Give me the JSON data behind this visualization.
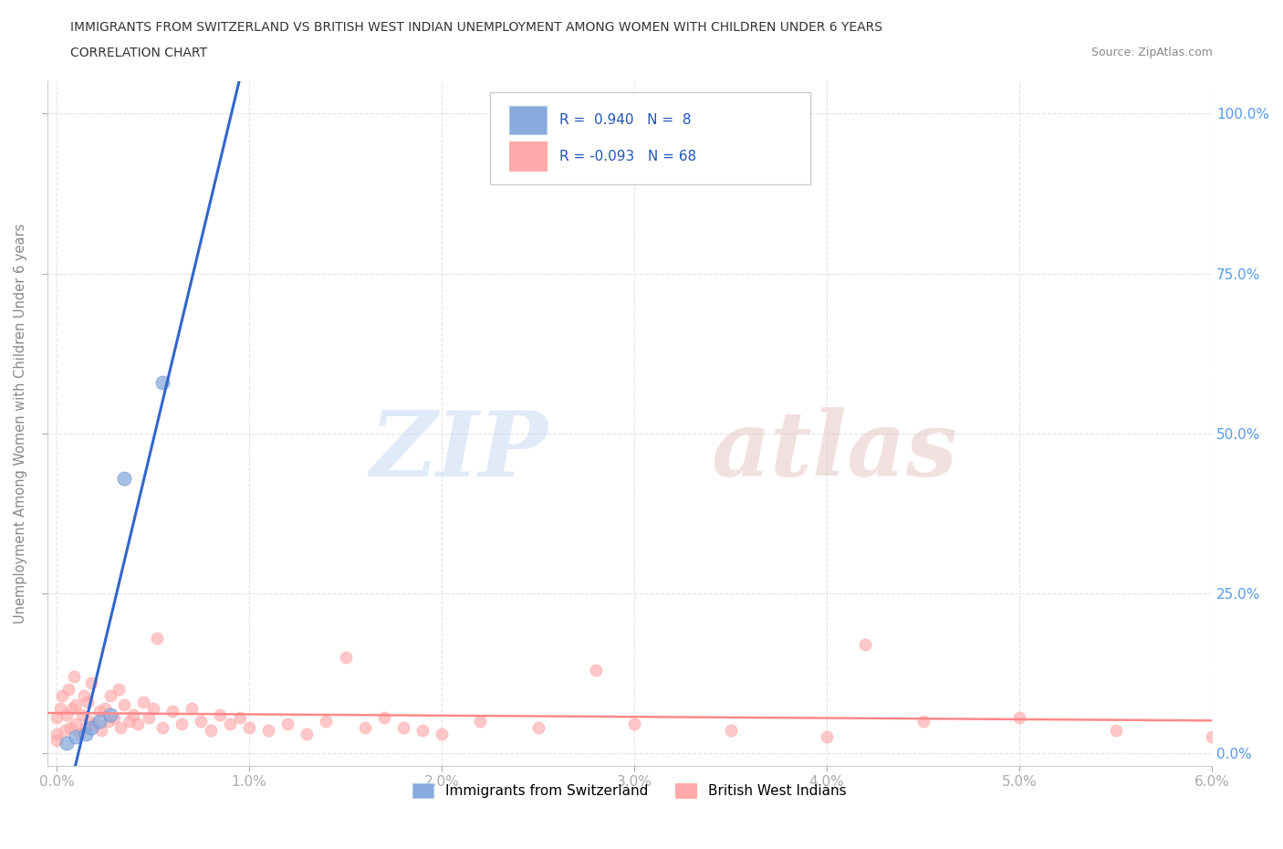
{
  "title_line1": "IMMIGRANTS FROM SWITZERLAND VS BRITISH WEST INDIAN UNEMPLOYMENT AMONG WOMEN WITH CHILDREN UNDER 6 YEARS",
  "title_line2": "CORRELATION CHART",
  "source": "Source: ZipAtlas.com",
  "ylabel": "Unemployment Among Women with Children Under 6 years",
  "x_tick_labels": [
    "0.0%",
    "1.0%",
    "2.0%",
    "3.0%",
    "4.0%",
    "5.0%",
    "6.0%"
  ],
  "y_tick_labels_right": [
    "0.0%",
    "25.0%",
    "50.0%",
    "75.0%",
    "100.0%"
  ],
  "swiss_R": 0.94,
  "swiss_N": 8,
  "bwi_R": -0.093,
  "bwi_N": 68,
  "swiss_color": "#88aadd",
  "bwi_color": "#ffaaaa",
  "swiss_line_color": "#3366cc",
  "bwi_line_color": "#ff8888",
  "watermark_zip": "ZIP",
  "watermark_atlas": "atlas",
  "legend_label_swiss": "Immigrants from Switzerland",
  "legend_label_bwi": "British West Indians",
  "swiss_scatter_x": [
    0.05,
    0.1,
    0.15,
    0.18,
    0.22,
    0.28,
    0.35,
    0.55
  ],
  "swiss_scatter_y": [
    1.5,
    2.5,
    3.0,
    4.0,
    5.0,
    6.0,
    43.0,
    58.0
  ],
  "bwi_scatter_x": [
    0.0,
    0.0,
    0.0,
    0.02,
    0.03,
    0.04,
    0.05,
    0.06,
    0.07,
    0.08,
    0.09,
    0.1,
    0.1,
    0.12,
    0.13,
    0.14,
    0.15,
    0.16,
    0.17,
    0.18,
    0.2,
    0.22,
    0.23,
    0.25,
    0.27,
    0.28,
    0.3,
    0.32,
    0.33,
    0.35,
    0.38,
    0.4,
    0.42,
    0.45,
    0.48,
    0.5,
    0.52,
    0.55,
    0.6,
    0.65,
    0.7,
    0.75,
    0.8,
    0.85,
    0.9,
    0.95,
    1.0,
    1.1,
    1.2,
    1.3,
    1.4,
    1.5,
    1.6,
    1.7,
    1.8,
    1.9,
    2.0,
    2.2,
    2.5,
    2.8,
    3.0,
    3.5,
    4.0,
    4.5,
    5.0,
    5.5,
    6.0,
    4.2
  ],
  "bwi_scatter_y": [
    3.0,
    5.5,
    2.0,
    7.0,
    9.0,
    3.5,
    6.0,
    10.0,
    4.0,
    7.0,
    12.0,
    4.5,
    7.5,
    3.0,
    6.0,
    9.0,
    4.0,
    8.0,
    5.0,
    11.0,
    4.5,
    6.5,
    3.5,
    7.0,
    5.0,
    9.0,
    5.5,
    10.0,
    4.0,
    7.5,
    5.0,
    6.0,
    4.5,
    8.0,
    5.5,
    7.0,
    18.0,
    4.0,
    6.5,
    4.5,
    7.0,
    5.0,
    3.5,
    6.0,
    4.5,
    5.5,
    4.0,
    3.5,
    4.5,
    3.0,
    5.0,
    15.0,
    4.0,
    5.5,
    4.0,
    3.5,
    3.0,
    5.0,
    4.0,
    13.0,
    4.5,
    3.5,
    2.5,
    5.0,
    5.5,
    3.5,
    2.5,
    17.0
  ]
}
